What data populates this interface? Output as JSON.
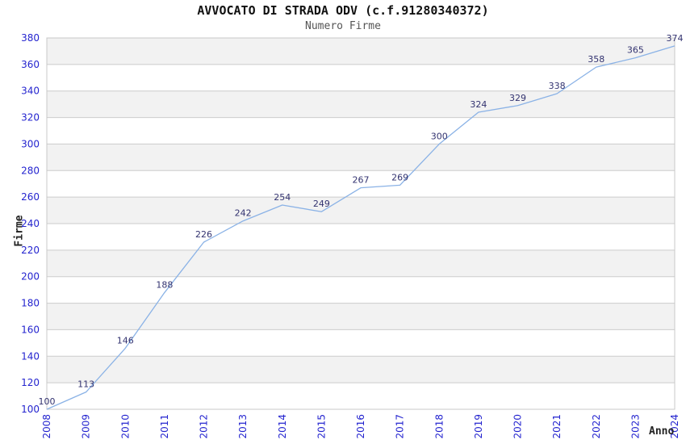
{
  "chart_data": {
    "type": "line",
    "title": "AVVOCATO DI STRADA ODV (c.f.91280340372)",
    "subtitle": "Numero Firme",
    "xlabel": "Anno",
    "ylabel": "Firme",
    "categories": [
      "2008",
      "2009",
      "2010",
      "2011",
      "2012",
      "2013",
      "2014",
      "2015",
      "2016",
      "2017",
      "2018",
      "2019",
      "2020",
      "2021",
      "2022",
      "2023",
      "2024"
    ],
    "series": [
      {
        "name": "Numero Firme",
        "values": [
          100,
          113,
          146,
          188,
          226,
          242,
          254,
          249,
          267,
          269,
          300,
          324,
          329,
          338,
          358,
          365,
          374
        ]
      }
    ],
    "ylim": [
      100,
      380
    ],
    "ytick_step": 20,
    "yticks": [
      100,
      120,
      140,
      160,
      180,
      200,
      220,
      240,
      260,
      280,
      300,
      320,
      340,
      360,
      380
    ],
    "grid": "horizontal",
    "banded_background": true,
    "legend_position": "none",
    "show_data_labels": true,
    "x_tick_rotation": -90
  },
  "colors": {
    "line": "#8ab2e6",
    "tick_label": "#2424cf",
    "data_label": "#333370",
    "band": "#f2f2f2",
    "grid": "#cccccc",
    "plot_border": "#c8c8c8",
    "title": "#111111",
    "subtitle": "#555555",
    "axis_title": "#222222",
    "background": "#ffffff"
  }
}
